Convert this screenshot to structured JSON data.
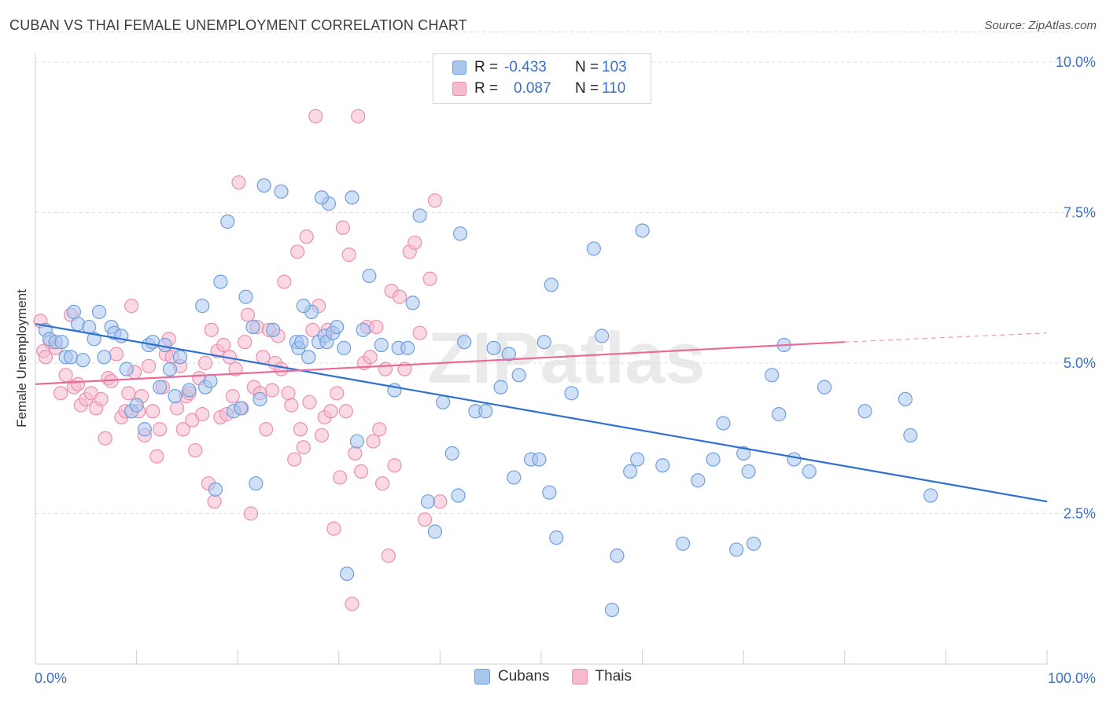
{
  "header": {
    "title": "CUBAN VS THAI FEMALE UNEMPLOYMENT CORRELATION CHART",
    "source": "Source: ZipAtlas.com"
  },
  "legend": {
    "rows": [
      {
        "r_label": "R =",
        "r_value": "-0.433",
        "n_label": "N =",
        "n_value": "103"
      },
      {
        "r_label": "R =",
        "r_value": "0.087",
        "n_label": "N =",
        "n_value": "110"
      }
    ]
  },
  "bottom_legend": {
    "cubans": "Cubans",
    "thais": "Thais"
  },
  "colors": {
    "cubans_fill": "#a9c6ef",
    "cubans_stroke": "#6f9fdc",
    "cubans_line": "#2f6fd0",
    "thais_fill": "#f6b9cd",
    "thais_stroke": "#ec8fb0",
    "thais_line": "#e86b98",
    "axis_text": "#3a6fc6",
    "grid": "#dddddd"
  },
  "chart_data": {
    "type": "scatter",
    "title": "CUBAN VS THAI FEMALE UNEMPLOYMENT CORRELATION CHART",
    "xlabel": "",
    "ylabel": "Female Unemployment",
    "xlim": [
      0,
      100
    ],
    "ylim": [
      0,
      10.5
    ],
    "x_tick_labels": [
      "0.0%",
      "100.0%"
    ],
    "y_ticks": [
      2.5,
      5.0,
      7.5,
      10.0
    ],
    "y_tick_labels": [
      "2.5%",
      "5.0%",
      "7.5%",
      "10.0%"
    ],
    "grid": true,
    "watermark": "ZIPatlas",
    "series": [
      {
        "name": "Cubans",
        "trend": {
          "x": [
            0,
            100
          ],
          "y": [
            5.65,
            2.7
          ]
        },
        "points": [
          [
            1.0,
            5.55
          ],
          [
            1.4,
            5.4
          ],
          [
            2.0,
            5.35
          ],
          [
            2.6,
            5.35
          ],
          [
            3.0,
            5.1
          ],
          [
            3.5,
            5.1
          ],
          [
            3.8,
            5.85
          ],
          [
            4.2,
            5.65
          ],
          [
            4.7,
            5.05
          ],
          [
            5.3,
            5.6
          ],
          [
            5.8,
            5.4
          ],
          [
            6.3,
            5.85
          ],
          [
            6.8,
            5.1
          ],
          [
            7.5,
            5.6
          ],
          [
            7.8,
            5.5
          ],
          [
            8.5,
            5.45
          ],
          [
            9.0,
            4.9
          ],
          [
            9.5,
            4.2
          ],
          [
            10.0,
            4.3
          ],
          [
            10.8,
            3.9
          ],
          [
            11.2,
            5.3
          ],
          [
            11.6,
            5.35
          ],
          [
            12.3,
            4.6
          ],
          [
            12.8,
            5.3
          ],
          [
            13.3,
            4.9
          ],
          [
            13.8,
            4.45
          ],
          [
            14.3,
            5.1
          ],
          [
            15.2,
            4.55
          ],
          [
            16.5,
            5.95
          ],
          [
            16.8,
            4.6
          ],
          [
            17.3,
            4.7
          ],
          [
            17.8,
            2.9
          ],
          [
            18.3,
            6.35
          ],
          [
            19.0,
            7.35
          ],
          [
            19.6,
            4.2
          ],
          [
            20.3,
            4.25
          ],
          [
            20.8,
            6.1
          ],
          [
            21.5,
            5.6
          ],
          [
            21.8,
            3.0
          ],
          [
            22.2,
            4.4
          ],
          [
            22.6,
            7.95
          ],
          [
            23.5,
            5.55
          ],
          [
            24.3,
            7.85
          ],
          [
            25.8,
            5.35
          ],
          [
            26.0,
            5.25
          ],
          [
            26.3,
            5.35
          ],
          [
            27.0,
            5.1
          ],
          [
            27.3,
            5.85
          ],
          [
            26.5,
            5.95
          ],
          [
            28.0,
            5.35
          ],
          [
            28.6,
            5.45
          ],
          [
            29.0,
            7.65
          ],
          [
            28.3,
            7.75
          ],
          [
            28.8,
            5.35
          ],
          [
            29.4,
            5.5
          ],
          [
            29.8,
            5.6
          ],
          [
            30.5,
            5.25
          ],
          [
            30.8,
            1.5
          ],
          [
            31.3,
            7.75
          ],
          [
            31.8,
            3.7
          ],
          [
            32.4,
            5.55
          ],
          [
            33.0,
            6.45
          ],
          [
            34.2,
            5.3
          ],
          [
            35.5,
            4.55
          ],
          [
            35.9,
            5.25
          ],
          [
            36.8,
            5.25
          ],
          [
            37.3,
            6.0
          ],
          [
            38.0,
            7.45
          ],
          [
            38.8,
            2.7
          ],
          [
            39.5,
            2.2
          ],
          [
            40.3,
            4.35
          ],
          [
            41.2,
            3.5
          ],
          [
            42.0,
            7.15
          ],
          [
            41.8,
            2.8
          ],
          [
            42.4,
            5.35
          ],
          [
            43.5,
            4.2
          ],
          [
            44.5,
            4.2
          ],
          [
            45.3,
            5.25
          ],
          [
            46.0,
            4.6
          ],
          [
            46.8,
            5.15
          ],
          [
            47.3,
            3.1
          ],
          [
            47.8,
            4.8
          ],
          [
            49.0,
            3.4
          ],
          [
            49.8,
            3.4
          ],
          [
            50.3,
            5.35
          ],
          [
            50.8,
            2.85
          ],
          [
            51.0,
            6.3
          ],
          [
            51.5,
            2.1
          ],
          [
            53.0,
            4.5
          ],
          [
            55.2,
            6.9
          ],
          [
            56.0,
            5.45
          ],
          [
            57.0,
            0.9
          ],
          [
            57.5,
            1.8
          ],
          [
            58.8,
            3.2
          ],
          [
            59.5,
            3.4
          ],
          [
            60.0,
            7.2
          ],
          [
            62.0,
            3.3
          ],
          [
            64.0,
            2.0
          ],
          [
            65.5,
            3.05
          ],
          [
            67.0,
            3.4
          ],
          [
            68.0,
            4.0
          ],
          [
            69.3,
            1.9
          ],
          [
            70.0,
            3.5
          ],
          [
            70.5,
            3.2
          ],
          [
            71.0,
            2.0
          ],
          [
            72.8,
            4.8
          ],
          [
            73.5,
            4.15
          ],
          [
            74.0,
            5.3
          ],
          [
            75.0,
            3.4
          ],
          [
            76.5,
            3.2
          ],
          [
            78.0,
            4.6
          ],
          [
            82.0,
            4.2
          ],
          [
            86.0,
            4.4
          ],
          [
            86.5,
            3.8
          ],
          [
            88.5,
            2.8
          ]
        ]
      },
      {
        "name": "Thais",
        "trend": {
          "x": [
            0,
            80
          ],
          "y": [
            4.65,
            5.35
          ]
        },
        "trend_dashed": {
          "x": [
            80,
            100
          ],
          "y": [
            5.35,
            5.5
          ]
        },
        "points": [
          [
            0.5,
            5.7
          ],
          [
            0.8,
            5.2
          ],
          [
            1.0,
            5.1
          ],
          [
            1.5,
            5.35
          ],
          [
            2.0,
            5.25
          ],
          [
            2.5,
            4.5
          ],
          [
            3.0,
            4.8
          ],
          [
            3.5,
            5.8
          ],
          [
            3.8,
            4.6
          ],
          [
            4.2,
            4.65
          ],
          [
            4.5,
            4.3
          ],
          [
            5.0,
            4.4
          ],
          [
            5.5,
            4.5
          ],
          [
            6.0,
            4.25
          ],
          [
            6.5,
            4.4
          ],
          [
            6.9,
            3.75
          ],
          [
            7.2,
            4.75
          ],
          [
            7.5,
            4.7
          ],
          [
            8.0,
            5.15
          ],
          [
            8.5,
            4.1
          ],
          [
            8.9,
            4.2
          ],
          [
            9.2,
            4.5
          ],
          [
            9.5,
            5.95
          ],
          [
            9.8,
            4.85
          ],
          [
            10.2,
            4.2
          ],
          [
            10.5,
            4.45
          ],
          [
            10.8,
            3.8
          ],
          [
            11.2,
            4.95
          ],
          [
            11.6,
            4.2
          ],
          [
            12.0,
            3.45
          ],
          [
            12.3,
            3.9
          ],
          [
            12.6,
            4.6
          ],
          [
            12.9,
            5.15
          ],
          [
            13.2,
            5.4
          ],
          [
            13.5,
            5.1
          ],
          [
            14.0,
            4.25
          ],
          [
            14.3,
            4.95
          ],
          [
            14.6,
            3.9
          ],
          [
            14.9,
            4.45
          ],
          [
            15.2,
            4.5
          ],
          [
            15.5,
            4.05
          ],
          [
            15.8,
            3.55
          ],
          [
            16.2,
            4.75
          ],
          [
            16.5,
            4.15
          ],
          [
            16.8,
            5.0
          ],
          [
            17.1,
            3.0
          ],
          [
            17.4,
            5.55
          ],
          [
            17.7,
            2.7
          ],
          [
            18.0,
            5.2
          ],
          [
            18.3,
            4.1
          ],
          [
            18.6,
            5.3
          ],
          [
            18.9,
            4.15
          ],
          [
            19.2,
            5.1
          ],
          [
            19.5,
            4.45
          ],
          [
            19.8,
            4.9
          ],
          [
            20.1,
            8.0
          ],
          [
            20.4,
            4.25
          ],
          [
            20.7,
            5.35
          ],
          [
            21.0,
            5.8
          ],
          [
            21.3,
            2.5
          ],
          [
            21.6,
            4.6
          ],
          [
            21.9,
            5.6
          ],
          [
            22.2,
            4.5
          ],
          [
            22.5,
            5.1
          ],
          [
            22.8,
            3.9
          ],
          [
            23.1,
            5.55
          ],
          [
            23.4,
            4.55
          ],
          [
            23.7,
            5.0
          ],
          [
            24.0,
            5.45
          ],
          [
            24.3,
            4.9
          ],
          [
            24.6,
            6.35
          ],
          [
            25.0,
            4.5
          ],
          [
            25.3,
            4.3
          ],
          [
            25.6,
            3.4
          ],
          [
            25.9,
            6.85
          ],
          [
            26.2,
            3.9
          ],
          [
            26.5,
            3.6
          ],
          [
            26.8,
            7.1
          ],
          [
            27.1,
            4.35
          ],
          [
            27.4,
            5.55
          ],
          [
            27.7,
            9.1
          ],
          [
            28.0,
            5.95
          ],
          [
            28.3,
            3.8
          ],
          [
            28.6,
            4.1
          ],
          [
            28.9,
            5.55
          ],
          [
            29.2,
            4.2
          ],
          [
            29.5,
            2.25
          ],
          [
            29.8,
            4.5
          ],
          [
            30.1,
            3.1
          ],
          [
            30.4,
            7.25
          ],
          [
            30.7,
            4.2
          ],
          [
            31.0,
            6.8
          ],
          [
            31.3,
            1.0
          ],
          [
            31.6,
            3.5
          ],
          [
            31.9,
            9.1
          ],
          [
            32.2,
            3.2
          ],
          [
            32.5,
            5.0
          ],
          [
            32.8,
            5.6
          ],
          [
            33.1,
            5.1
          ],
          [
            33.4,
            3.7
          ],
          [
            33.7,
            5.6
          ],
          [
            34.0,
            3.9
          ],
          [
            34.3,
            3.0
          ],
          [
            34.6,
            4.9
          ],
          [
            34.9,
            1.8
          ],
          [
            35.2,
            6.2
          ],
          [
            35.5,
            3.3
          ],
          [
            36.0,
            6.1
          ],
          [
            36.5,
            4.9
          ],
          [
            37.0,
            6.85
          ],
          [
            37.5,
            7.0
          ],
          [
            38.0,
            5.5
          ],
          [
            38.5,
            2.4
          ],
          [
            39.0,
            6.4
          ],
          [
            39.5,
            7.7
          ],
          [
            40.0,
            2.7
          ]
        ]
      }
    ]
  }
}
